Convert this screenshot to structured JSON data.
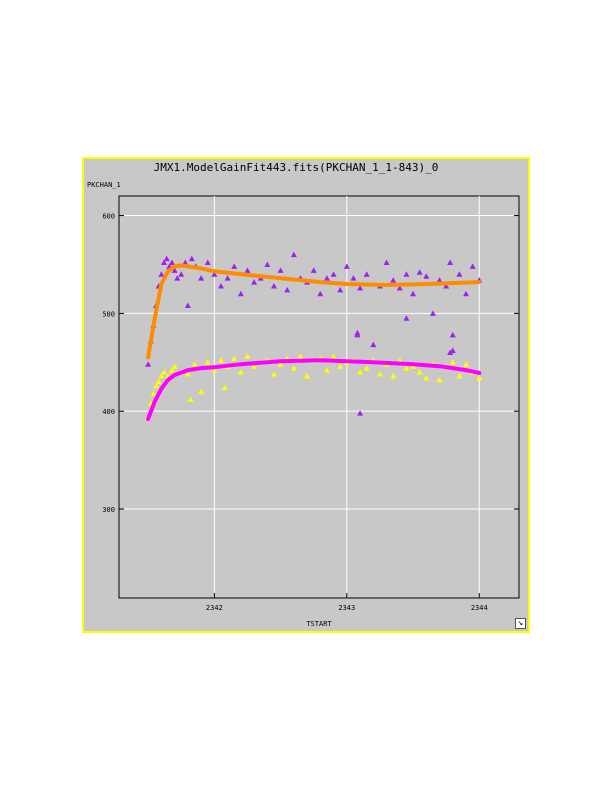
{
  "chart_data": {
    "type": "scatter",
    "title": "JMX1.ModelGainFit443.fits(PKCHAN_1_1-843)_0",
    "xlabel": "TSTART",
    "ylabel": "PKCHAN_1",
    "xlim": [
      2341.28,
      2344.3
    ],
    "ylim": [
      209,
      620
    ],
    "x_ticks": [
      2342,
      2343,
      2344
    ],
    "x_tick_labels": [
      "2342",
      "2343",
      "2344"
    ],
    "y_ticks": [
      300,
      400,
      500,
      600
    ],
    "y_tick_labels": [
      "300",
      "400",
      "500",
      "600"
    ],
    "grid": true,
    "series": [
      {
        "color": "#a020f0",
        "marker": "triangle",
        "x": [
          2341.5,
          2341.52,
          2341.54,
          2341.56,
          2341.58,
          2341.6,
          2341.62,
          2341.64,
          2341.66,
          2341.68,
          2341.7,
          2341.72,
          2341.75,
          2341.78,
          2341.8,
          2341.83,
          2341.86,
          2341.9,
          2341.95,
          2342.0,
          2342.05,
          2342.1,
          2342.15,
          2342.2,
          2342.25,
          2342.3,
          2342.35,
          2342.4,
          2342.45,
          2342.5,
          2342.55,
          2342.6,
          2342.65,
          2342.7,
          2342.75,
          2342.8,
          2342.85,
          2342.9,
          2342.95,
          2343.0,
          2343.05,
          2343.08,
          2343.1,
          2343.15,
          2343.2,
          2343.25,
          2343.3,
          2343.35,
          2343.4,
          2343.45,
          2343.5,
          2343.55,
          2343.6,
          2343.65,
          2343.7,
          2343.75,
          2343.78,
          2343.8,
          2343.85,
          2343.9,
          2343.95,
          2344.0
        ],
        "y": [
          448,
          472,
          488,
          508,
          528,
          540,
          552,
          556,
          548,
          552,
          544,
          536,
          540,
          552,
          508,
          556,
          548,
          536,
          552,
          540,
          528,
          536,
          548,
          520,
          544,
          532,
          536,
          550,
          528,
          544,
          524,
          560,
          536,
          532,
          544,
          520,
          536,
          540,
          524,
          548,
          536,
          480,
          526,
          540,
          468,
          528,
          552,
          534,
          526,
          540,
          520,
          542,
          538,
          500,
          534,
          528,
          552,
          462,
          540,
          520,
          548,
          534
        ]
      },
      {
        "color": "#ffff00",
        "marker": "triangle",
        "x": [
          2341.5,
          2341.52,
          2341.54,
          2341.56,
          2341.58,
          2341.6,
          2341.62,
          2341.65,
          2341.68,
          2341.7,
          2341.75,
          2341.8,
          2341.82,
          2341.85,
          2341.9,
          2341.95,
          2342.0,
          2342.05,
          2342.08,
          2342.1,
          2342.15,
          2342.2,
          2342.25,
          2342.3,
          2342.35,
          2342.4,
          2342.45,
          2342.5,
          2342.55,
          2342.6,
          2342.65,
          2342.7,
          2342.75,
          2342.8,
          2342.85,
          2342.9,
          2342.95,
          2343.0,
          2343.05,
          2343.1,
          2343.15,
          2343.2,
          2343.25,
          2343.3,
          2343.35,
          2343.4,
          2343.45,
          2343.5,
          2343.55,
          2343.6,
          2343.65,
          2343.7,
          2343.75,
          2343.8,
          2343.85,
          2343.9,
          2343.95,
          2344.0
        ],
        "y": [
          394,
          408,
          418,
          426,
          430,
          436,
          440,
          436,
          442,
          446,
          440,
          438,
          412,
          448,
          420,
          450,
          442,
          452,
          424,
          446,
          454,
          440,
          456,
          446,
          450,
          452,
          438,
          448,
          454,
          444,
          456,
          436,
          452,
          454,
          442,
          456,
          446,
          450,
          452,
          440,
          444,
          452,
          438,
          448,
          436,
          452,
          444,
          446,
          440,
          434,
          448,
          432,
          446,
          450,
          436,
          448,
          440,
          434
        ]
      },
      {
        "color": "#a020f0",
        "marker": "triangle",
        "x": [
          2343.08,
          2343.1,
          2343.45,
          2343.78,
          2343.8
        ],
        "y": [
          478,
          398,
          495,
          460,
          478
        ]
      }
    ],
    "fits": [
      {
        "color": "#ff8c00",
        "x": [
          2341.5,
          2341.55,
          2341.6,
          2341.65,
          2341.7,
          2341.75,
          2341.8,
          2341.9,
          2342.0,
          2342.2,
          2342.5,
          2342.8,
          2343.0,
          2343.3,
          2343.6,
          2343.8,
          2344.0
        ],
        "y": [
          455,
          495,
          530,
          543,
          548,
          549,
          548,
          546,
          543,
          540,
          536,
          532,
          530,
          529,
          530,
          531,
          532
        ]
      },
      {
        "color": "#ff00ff",
        "x": [
          2341.5,
          2341.55,
          2341.6,
          2341.65,
          2341.7,
          2341.8,
          2341.9,
          2342.0,
          2342.2,
          2342.5,
          2342.8,
          2343.0,
          2343.2,
          2343.5,
          2343.7,
          2343.9,
          2344.0
        ],
        "y": [
          392,
          410,
          423,
          432,
          437,
          442,
          444,
          445,
          448,
          451,
          452,
          451,
          450,
          448,
          446,
          442,
          439
        ]
      }
    ]
  }
}
